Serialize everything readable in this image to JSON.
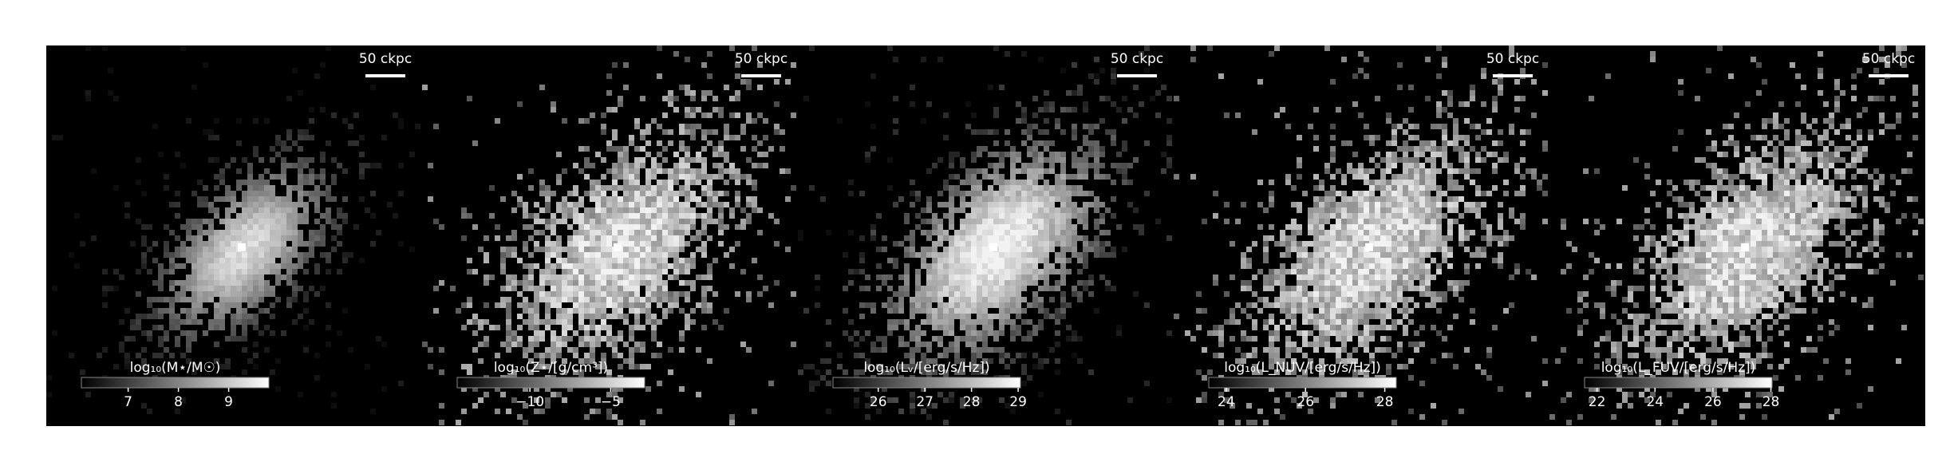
{
  "figure": {
    "panels": [
      {
        "scale_label": "50 ckpc",
        "colorbar": {
          "label": "log₁₀(M⋆/M☉)",
          "clim": [
            6.07,
            9.8
          ],
          "ticks": [
            7,
            8,
            9
          ]
        }
      },
      {
        "scale_label": "50 ckpc",
        "colorbar": {
          "label": "log₁₀(Z⋆/[g/cm³])",
          "clim": [
            -14.5,
            -2.9
          ],
          "ticks": [
            {
              "value": -10,
              "label": "−10"
            },
            {
              "value": -5,
              "label": "−5"
            }
          ]
        }
      },
      {
        "scale_label": "50 ckpc",
        "colorbar": {
          "label": "log₁₀(Lᵥ/[erg/s/Hz])",
          "clim": [
            25.03,
            29.05
          ],
          "ticks": [
            26,
            27,
            28,
            29
          ]
        }
      },
      {
        "scale_label": "50 ckpc",
        "colorbar": {
          "label": "log₁₀(L_NUV/[erg/s/Hz])",
          "clim": [
            23.56,
            28.29
          ],
          "ticks": [
            24,
            26,
            28
          ]
        }
      },
      {
        "scale_label": "50 ckpc",
        "colorbar": {
          "label": "log₁₀(L_FUV/[erg/s/Hz])",
          "clim": [
            21.57,
            28.04
          ],
          "ticks": [
            22,
            24,
            26,
            28
          ]
        }
      }
    ]
  }
}
